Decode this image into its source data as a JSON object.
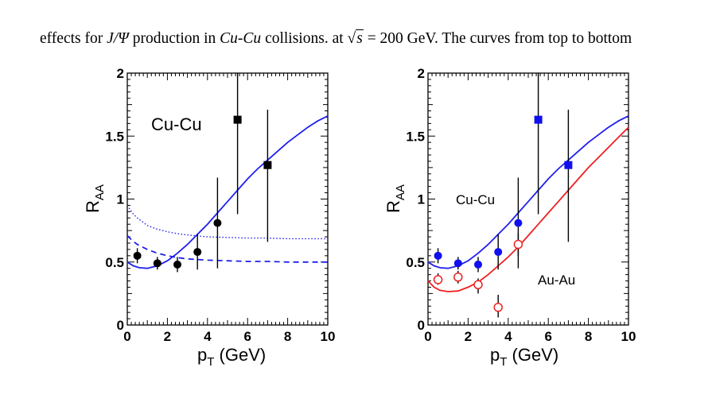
{
  "caption": {
    "part1": "effects for ",
    "jpsi": "J/Ψ",
    "part2": " production in ",
    "cucu": "Cu-Cu",
    "part3": " collisions.  at ",
    "sqrt_arg": "s",
    "part4": " = 200 GeV.  The curves from top to bottom"
  },
  "chart_data": [
    {
      "type": "scatter",
      "xlabel_main": "p",
      "xlabel_sub": "T",
      "xlabel_units": " (GeV)",
      "ylabel_main": "R",
      "ylabel_sub": "AA",
      "xlim": [
        0,
        10
      ],
      "ylim": [
        0,
        2
      ],
      "x_ticks": [
        "0",
        "2",
        "4",
        "6",
        "8",
        "10"
      ],
      "y_ticks": [
        "0",
        "0.5",
        "1",
        "1.5",
        "2"
      ],
      "annotation": "Cu-Cu",
      "series": [
        {
          "marker": "circle-filled",
          "color": "#000000",
          "points": [
            {
              "x": 0.5,
              "y": 0.55,
              "lo": 0.49,
              "hi": 0.61
            },
            {
              "x": 1.5,
              "y": 0.49,
              "lo": 0.44,
              "hi": 0.54
            },
            {
              "x": 2.5,
              "y": 0.48,
              "lo": 0.42,
              "hi": 0.54
            },
            {
              "x": 3.5,
              "y": 0.58,
              "lo": 0.44,
              "hi": 0.72
            },
            {
              "x": 4.5,
              "y": 0.81,
              "lo": 0.45,
              "hi": 1.17
            }
          ]
        },
        {
          "marker": "square-filled",
          "color": "#000000",
          "points": [
            {
              "x": 5.5,
              "y": 1.63,
              "lo": 0.88,
              "hi": 2.0
            },
            {
              "x": 7.0,
              "y": 1.27,
              "lo": 0.66,
              "hi": 1.71
            }
          ]
        }
      ],
      "curves": [
        {
          "style": "solid",
          "color": "#2020ee",
          "x": [
            0,
            0.3,
            0.6,
            1.0,
            1.5,
            2.0,
            2.5,
            3.0,
            3.5,
            4.0,
            4.5,
            5.0,
            5.5,
            6.0,
            6.5,
            7.0,
            7.5,
            8.0,
            8.5,
            9.0,
            9.5,
            10.0
          ],
          "y": [
            0.5,
            0.47,
            0.455,
            0.45,
            0.47,
            0.51,
            0.57,
            0.64,
            0.72,
            0.8,
            0.89,
            0.98,
            1.07,
            1.16,
            1.24,
            1.31,
            1.38,
            1.45,
            1.51,
            1.57,
            1.62,
            1.66
          ]
        },
        {
          "style": "dotted",
          "color": "#2020ee",
          "x": [
            0,
            0.25,
            0.5,
            0.75,
            1.0,
            1.5,
            2.0,
            2.5,
            3.0,
            4.0,
            5.0,
            6.0,
            7.0,
            8.0,
            9.0,
            10.0
          ],
          "y": [
            0.95,
            0.89,
            0.85,
            0.82,
            0.79,
            0.76,
            0.74,
            0.725,
            0.715,
            0.7,
            0.695,
            0.69,
            0.69,
            0.685,
            0.685,
            0.685
          ]
        },
        {
          "style": "dashed",
          "color": "#2020ee",
          "x": [
            0,
            0.25,
            0.5,
            1.0,
            1.5,
            2.0,
            2.5,
            3.0,
            4.0,
            5.0,
            6.0,
            7.0,
            8.0,
            9.0,
            10.0
          ],
          "y": [
            0.71,
            0.67,
            0.64,
            0.6,
            0.57,
            0.55,
            0.535,
            0.525,
            0.515,
            0.51,
            0.505,
            0.505,
            0.5,
            0.5,
            0.5
          ]
        }
      ]
    },
    {
      "type": "scatter",
      "xlabel_main": "p",
      "xlabel_sub": "T",
      "xlabel_units": " (GeV)",
      "ylabel_main": "R",
      "ylabel_sub": "AA",
      "xlim": [
        0,
        10
      ],
      "ylim": [
        0,
        2
      ],
      "x_ticks": [
        "0",
        "2",
        "4",
        "6",
        "8",
        "10"
      ],
      "y_ticks": [
        "0",
        "0.5",
        "1",
        "1.5",
        "2"
      ],
      "annotations": [
        "Cu-Cu",
        "Au-Au"
      ],
      "series": [
        {
          "marker": "circle-filled",
          "color": "#1010ee",
          "points": [
            {
              "x": 0.5,
              "y": 0.55,
              "lo": 0.49,
              "hi": 0.61
            },
            {
              "x": 1.5,
              "y": 0.49,
              "lo": 0.44,
              "hi": 0.54
            },
            {
              "x": 2.5,
              "y": 0.48,
              "lo": 0.42,
              "hi": 0.54
            },
            {
              "x": 3.5,
              "y": 0.58,
              "lo": 0.44,
              "hi": 0.72
            },
            {
              "x": 4.5,
              "y": 0.81,
              "lo": 0.45,
              "hi": 1.17
            }
          ]
        },
        {
          "marker": "square-filled",
          "color": "#1010ee",
          "points": [
            {
              "x": 5.5,
              "y": 1.63,
              "lo": 0.88,
              "hi": 2.0
            },
            {
              "x": 7.0,
              "y": 1.27,
              "lo": 0.66,
              "hi": 1.71
            }
          ]
        },
        {
          "marker": "circle-open",
          "color": "#ee2020",
          "points": [
            {
              "x": 0.5,
              "y": 0.36,
              "lo": 0.32,
              "hi": 0.41
            },
            {
              "x": 1.5,
              "y": 0.38,
              "lo": 0.33,
              "hi": 0.43
            },
            {
              "x": 2.5,
              "y": 0.32,
              "lo": 0.25,
              "hi": 0.37
            },
            {
              "x": 3.5,
              "y": 0.14,
              "lo": 0.06,
              "hi": 0.24
            },
            {
              "x": 4.5,
              "y": 0.64,
              "lo": 0.55,
              "hi": 0.73
            }
          ]
        }
      ],
      "curves": [
        {
          "style": "solid",
          "color": "#2020ee",
          "x": [
            0,
            0.3,
            0.6,
            1.0,
            1.5,
            2.0,
            2.5,
            3.0,
            3.5,
            4.0,
            4.5,
            5.0,
            5.5,
            6.0,
            6.5,
            7.0,
            7.5,
            8.0,
            8.5,
            9.0,
            9.5,
            10.0
          ],
          "y": [
            0.5,
            0.47,
            0.455,
            0.45,
            0.47,
            0.51,
            0.57,
            0.64,
            0.72,
            0.8,
            0.89,
            0.98,
            1.07,
            1.16,
            1.24,
            1.31,
            1.38,
            1.45,
            1.51,
            1.57,
            1.62,
            1.66
          ]
        },
        {
          "style": "solid",
          "color": "#ee2020",
          "x": [
            0,
            0.3,
            0.6,
            1.0,
            1.5,
            2.0,
            2.5,
            3.0,
            3.5,
            4.0,
            4.5,
            5.0,
            5.5,
            6.0,
            6.5,
            7.0,
            7.5,
            8.0,
            8.5,
            9.0,
            9.5,
            10.0
          ],
          "y": [
            0.35,
            0.3,
            0.275,
            0.265,
            0.27,
            0.3,
            0.34,
            0.4,
            0.47,
            0.54,
            0.62,
            0.71,
            0.8,
            0.89,
            0.98,
            1.07,
            1.16,
            1.25,
            1.33,
            1.41,
            1.49,
            1.57
          ]
        }
      ]
    }
  ]
}
